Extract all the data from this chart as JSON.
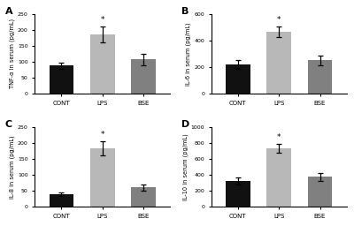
{
  "panels": [
    {
      "label": "A",
      "ylabel": "TNF-α in serum (pg/mL)",
      "ylim": [
        0,
        250
      ],
      "yticks": [
        0,
        50,
        100,
        150,
        200,
        250
      ],
      "categories": [
        "CONT",
        "LPS",
        "BSE"
      ],
      "values": [
        88,
        185,
        107
      ],
      "errors": [
        10,
        25,
        18
      ],
      "star_bar": 1,
      "bar_colors": [
        "#111111",
        "#b8b8b8",
        "#808080"
      ]
    },
    {
      "label": "B",
      "ylabel": "IL-6 in serum (pg/mL)",
      "ylim": [
        0,
        600
      ],
      "yticks": [
        0,
        200,
        400,
        600
      ],
      "categories": [
        "CONT",
        "LPS",
        "BSE"
      ],
      "values": [
        220,
        465,
        250
      ],
      "errors": [
        35,
        40,
        35
      ],
      "star_bar": 1,
      "bar_colors": [
        "#111111",
        "#b8b8b8",
        "#808080"
      ]
    },
    {
      "label": "C",
      "ylabel": "IL-8 in serum (pg/mL)",
      "ylim": [
        0,
        250
      ],
      "yticks": [
        0,
        50,
        100,
        150,
        200,
        250
      ],
      "categories": [
        "CONT",
        "LPS",
        "BSE"
      ],
      "values": [
        38,
        183,
        60
      ],
      "errors": [
        5,
        22,
        10
      ],
      "star_bar": 1,
      "bar_colors": [
        "#111111",
        "#b8b8b8",
        "#808080"
      ]
    },
    {
      "label": "D",
      "ylabel": "IL-10 in serum (pg/mL)",
      "ylim": [
        0,
        1000
      ],
      "yticks": [
        0,
        200,
        400,
        600,
        800,
        1000
      ],
      "categories": [
        "CONT",
        "LPS",
        "BSE"
      ],
      "values": [
        320,
        730,
        375
      ],
      "errors": [
        45,
        55,
        50
      ],
      "star_bar": 1,
      "bar_colors": [
        "#111111",
        "#b8b8b8",
        "#808080"
      ]
    }
  ],
  "background_color": "#ffffff",
  "fig_width": 4.0,
  "fig_height": 2.56,
  "dpi": 100
}
